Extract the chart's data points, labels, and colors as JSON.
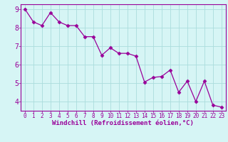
{
  "x": [
    0,
    1,
    2,
    3,
    4,
    5,
    6,
    7,
    8,
    9,
    10,
    11,
    12,
    13,
    14,
    15,
    16,
    17,
    18,
    19,
    20,
    21,
    22,
    23
  ],
  "y": [
    9.0,
    8.3,
    8.1,
    8.8,
    8.3,
    8.1,
    8.1,
    7.5,
    7.5,
    6.5,
    6.9,
    6.6,
    6.6,
    6.45,
    5.05,
    5.3,
    5.35,
    5.7,
    4.5,
    5.1,
    4.0,
    5.1,
    3.8,
    3.7
  ],
  "line_color": "#990099",
  "marker": "D",
  "marker_size": 2.5,
  "bg_color": "#d6f5f5",
  "grid_color": "#aadddd",
  "xlabel": "Windchill (Refroidissement éolien,°C)",
  "xlabel_color": "#990099",
  "tick_color": "#990099",
  "spine_color": "#990099",
  "ylim": [
    3.5,
    9.25
  ],
  "xlim": [
    -0.5,
    23.5
  ],
  "yticks": [
    4,
    5,
    6,
    7,
    8,
    9
  ],
  "xticks": [
    0,
    1,
    2,
    3,
    4,
    5,
    6,
    7,
    8,
    9,
    10,
    11,
    12,
    13,
    14,
    15,
    16,
    17,
    18,
    19,
    20,
    21,
    22,
    23
  ],
  "tick_fontsize": 5.5,
  "ytick_fontsize": 7.0,
  "xlabel_fontsize": 6.5
}
